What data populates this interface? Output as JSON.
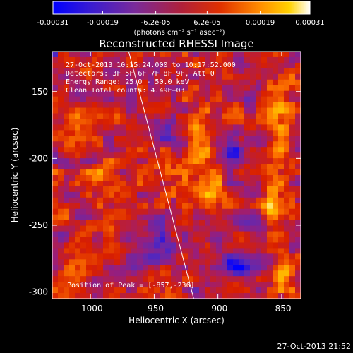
{
  "chart_data": {
    "type": "heatmap",
    "title": "Reconstructed RHESSI Image",
    "xlabel": "Heliocentric X (arcsec)",
    "ylabel": "Heliocentric Y (arcsec)",
    "xlim": [
      -1030,
      -835
    ],
    "ylim": [
      -305,
      -120
    ],
    "x_ticks": [
      -1000,
      -950,
      -900,
      -850
    ],
    "x_tick_labels": [
      "-1000",
      "-950",
      "-900",
      "-850"
    ],
    "y_ticks": [
      -150,
      -200,
      -250,
      -300
    ],
    "y_tick_labels": [
      "-150",
      "-200",
      "-250",
      "-300"
    ],
    "colorbar": {
      "min": -0.00031,
      "max": 0.00031,
      "ticks": [
        -0.00031,
        -0.00019,
        -6.2e-05,
        6.2e-05,
        0.00019,
        0.00031
      ],
      "tick_labels": [
        "-0.00031",
        "-0.00019",
        "-6.2e-05",
        "6.2e-05",
        "0.00019",
        "0.00031"
      ],
      "units": "(photons cm⁻² s⁻¹ asec⁻²)"
    },
    "annotations": [
      "27-Oct-2013 10:15:24.000 to 10:17:52.000",
      "Detectors: 3F 5F 6F 7F 8F 9F, Att 0",
      "Energy Range: 25.0 - 50.0 keV",
      "Clean     Total counts: 4.49E+03"
    ],
    "peak_label": "Position of Peak = [-857,-236]",
    "peak_position": [
      -857,
      -236
    ],
    "limb_line": [
      [
        -970,
        -120
      ],
      [
        -919,
        -305
      ]
    ],
    "footer_timestamp": "27-Oct-2013 21:52"
  },
  "colors": {
    "background": "#000000",
    "colormap": [
      "#0000ff",
      "#5a2ab8",
      "#9a1e7a",
      "#d81e00",
      "#ff7800",
      "#ffd000",
      "#ffffff"
    ]
  }
}
